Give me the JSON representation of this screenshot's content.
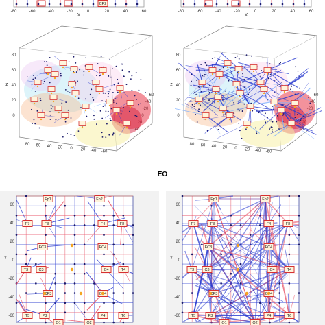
{
  "condition_label": "EO",
  "colors": {
    "grid_red": "#e84a5f",
    "grid_blue": "#2a3bd0",
    "electrode_box": "#d63030",
    "electrode_fill": "#fff4dc",
    "node": "#1a1a6a",
    "hub": "#f5a623"
  },
  "top_panels": {
    "x_ticks": [
      "-80",
      "-60",
      "-40",
      "-20",
      "0",
      "20",
      "40",
      "60"
    ],
    "x_label": "X",
    "left_electrodes": [
      "CP2"
    ],
    "right_electrodes": []
  },
  "brain_panels": {
    "tick_labels": [
      "80",
      "60",
      "40",
      "20",
      "0",
      "-20",
      "-40",
      "-60",
      "-80"
    ],
    "z_label": "z",
    "electrodes": [
      "Fp1",
      "Fp2",
      "F7",
      "F3",
      "Fz",
      "F4",
      "F8",
      "FC3",
      "FCz",
      "FC4",
      "T3",
      "C3",
      "Cz",
      "C4",
      "T4",
      "CP3",
      "CP4",
      "T5",
      "P3",
      "Pz",
      "P4",
      "T6",
      "O1",
      "O2"
    ]
  },
  "bottom_panels": {
    "y_ticks": [
      "60",
      "40",
      "20",
      "0",
      "-20",
      "-40",
      "-60"
    ],
    "y_label": "Y",
    "electrodes": {
      "fp1": "Fp1",
      "fp2": "Fp2",
      "f7": "F7",
      "f3": "F3",
      "f4": "F4",
      "f8": "F8",
      "fc3": "FC3",
      "fc4": "FC4",
      "t3": "T3",
      "c3": "C3",
      "c4": "C4",
      "t4": "T4",
      "cp3": "CP3",
      "cp4": "CP4",
      "t5": "T5",
      "p3": "P3",
      "p4": "P4",
      "t6": "T6",
      "o1": "O1",
      "o2": "O2"
    }
  }
}
